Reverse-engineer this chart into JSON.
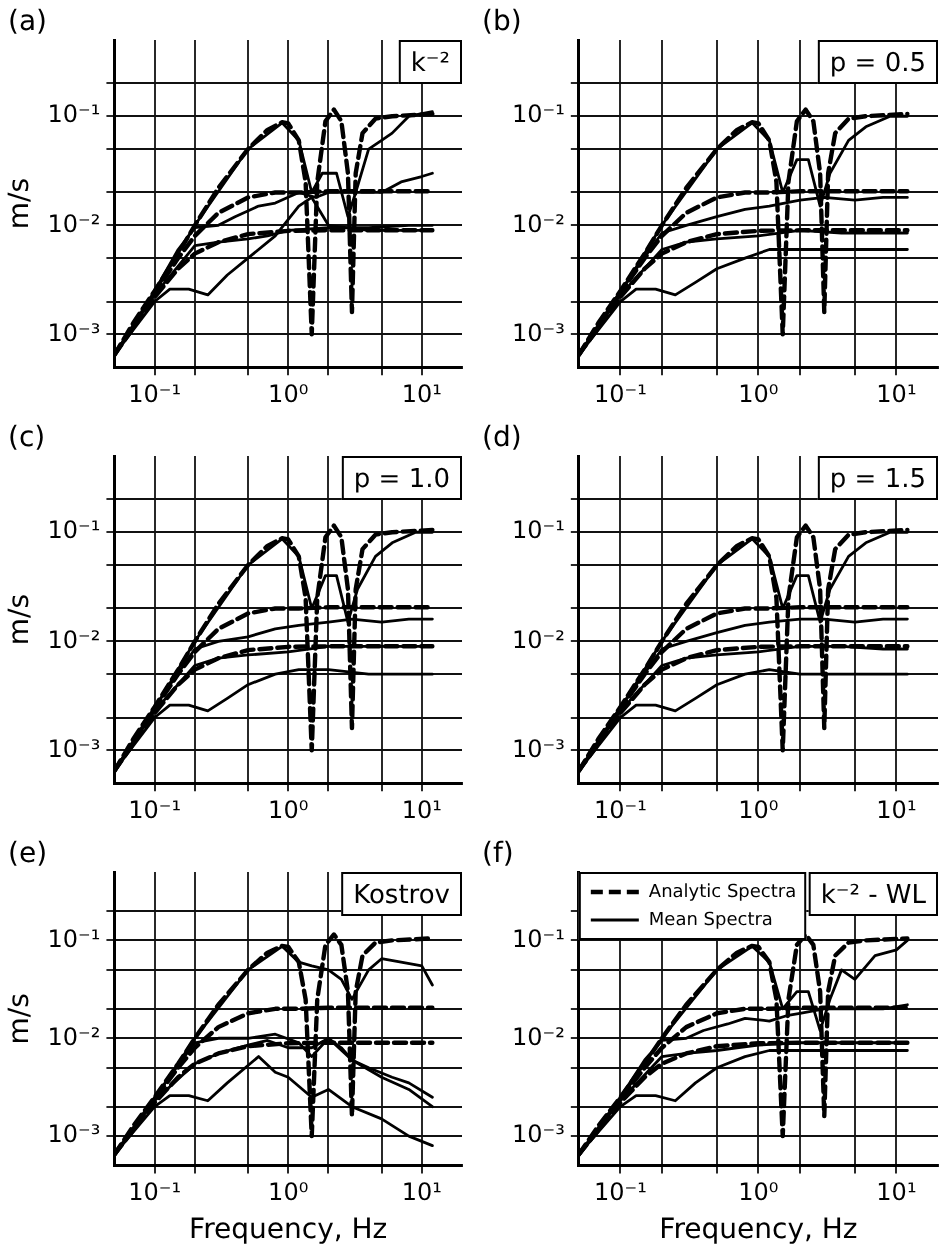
{
  "chart_data": [
    {
      "type": "line",
      "title": "(a)",
      "ylabel": "m/s",
      "annotations": [
        "k⁻²"
      ],
      "log": "xy",
      "grid": true,
      "xlim": [
        0.05,
        20
      ],
      "ylim": [
        0.0005,
        0.5
      ],
      "xticks": [
        {
          "value": 0.1,
          "label": "10⁻¹"
        },
        {
          "value": 0.2,
          "label": null
        },
        {
          "value": 0.5,
          "label": null
        },
        {
          "value": 1,
          "label": "10⁰"
        },
        {
          "value": 2,
          "label": null
        },
        {
          "value": 5,
          "label": null
        },
        {
          "value": 10,
          "label": "10¹"
        }
      ],
      "yticks": [
        {
          "value": 0.001,
          "label": "10⁻³"
        },
        {
          "value": 0.002,
          "label": null
        },
        {
          "value": 0.005,
          "label": null
        },
        {
          "value": 0.01,
          "label": "10⁻²"
        },
        {
          "value": 0.02,
          "label": null
        },
        {
          "value": 0.05,
          "label": null
        },
        {
          "value": 0.1,
          "label": "10⁻¹"
        },
        {
          "value": 0.2,
          "label": null
        }
      ],
      "series": [
        {
          "color": "#000000",
          "line_style": "solid",
          "x": [
            0.05,
            0.1,
            0.2,
            0.5,
            0.9,
            1.2,
            1.5,
            1.8,
            2.3,
            2.8,
            3.2,
            4,
            5,
            6,
            8,
            12
          ],
          "values": [
            0.00065,
            0.0024,
            0.01,
            0.05,
            0.087,
            0.06,
            0.02,
            0.03,
            0.03,
            0.012,
            0.02,
            0.05,
            0.06,
            0.07,
            0.1,
            0.11
          ]
        },
        {
          "color": "#000000",
          "line_style": "solid",
          "x": [
            0.05,
            0.1,
            0.15,
            0.2,
            0.3,
            0.4,
            0.6,
            0.8,
            1.2,
            1.6,
            2,
            3,
            5,
            7,
            10,
            12
          ],
          "values": [
            0.00065,
            0.0025,
            0.006,
            0.0095,
            0.01,
            0.012,
            0.015,
            0.016,
            0.02,
            0.018,
            0.02,
            0.02,
            0.02,
            0.025,
            0.028,
            0.03
          ]
        },
        {
          "color": "#000000",
          "line_style": "solid",
          "x": [
            0.05,
            0.1,
            0.13,
            0.18,
            0.25,
            0.35,
            0.5,
            0.8,
            1.2,
            1.5,
            2,
            4,
            8,
            12
          ],
          "values": [
            0.00065,
            0.002,
            0.0026,
            0.0026,
            0.0023,
            0.0035,
            0.005,
            0.008,
            0.015,
            0.018,
            0.01,
            0.009,
            0.009,
            0.009
          ]
        },
        {
          "color": "#000000",
          "line_style": "solid",
          "x": [
            0.05,
            0.1,
            0.2,
            0.3,
            0.5,
            0.7,
            1,
            2,
            4,
            8,
            12
          ],
          "values": [
            0.00065,
            0.0023,
            0.0065,
            0.007,
            0.0075,
            0.008,
            0.009,
            0.0095,
            0.0095,
            0.01,
            0.01
          ]
        },
        {
          "color": "#000000",
          "line_style": "dashed",
          "x": [
            0.05,
            0.07,
            0.1,
            0.15,
            0.2,
            0.3,
            0.5,
            0.7,
            0.9,
            1,
            1.2,
            1.35,
            1.5,
            1.65,
            1.9,
            2.2,
            2.5,
            2.8,
            3,
            3.2,
            3.6,
            4.5,
            6,
            12
          ],
          "values": [
            0.00065,
            0.0013,
            0.0025,
            0.0055,
            0.01,
            0.022,
            0.05,
            0.075,
            0.088,
            0.086,
            0.06,
            0.025,
            0.001,
            0.025,
            0.09,
            0.115,
            0.09,
            0.03,
            0.0016,
            0.03,
            0.07,
            0.095,
            0.1,
            0.105
          ]
        },
        {
          "color": "#000000",
          "line_style": "dashed",
          "x": [
            0.05,
            0.1,
            0.15,
            0.2,
            0.3,
            0.5,
            0.8,
            1.2,
            2,
            5,
            12
          ],
          "values": [
            0.00065,
            0.0024,
            0.005,
            0.008,
            0.013,
            0.018,
            0.02,
            0.02,
            0.0205,
            0.0205,
            0.0205
          ]
        },
        {
          "color": "#000000",
          "line_style": "dashed",
          "x": [
            0.05,
            0.1,
            0.15,
            0.2,
            0.3,
            0.5,
            1,
            2,
            12
          ],
          "values": [
            0.00065,
            0.0022,
            0.004,
            0.0055,
            0.007,
            0.0083,
            0.0089,
            0.009,
            0.009
          ]
        }
      ]
    },
    {
      "type": "line",
      "title": "(b)",
      "annotations": [
        "p = 0.5"
      ],
      "log": "xy",
      "grid": true,
      "xlim": [
        0.05,
        20
      ],
      "ylim": [
        0.0005,
        0.5
      ],
      "xticks": [
        {
          "value": 0.1,
          "label": "10⁻¹"
        },
        {
          "value": 0.2,
          "label": null
        },
        {
          "value": 0.5,
          "label": null
        },
        {
          "value": 1,
          "label": "10⁰"
        },
        {
          "value": 2,
          "label": null
        },
        {
          "value": 5,
          "label": null
        },
        {
          "value": 10,
          "label": "10¹"
        }
      ],
      "yticks": [
        {
          "value": 0.001,
          "label": "10⁻³"
        },
        {
          "value": 0.002,
          "label": null
        },
        {
          "value": 0.005,
          "label": null
        },
        {
          "value": 0.01,
          "label": "10⁻²"
        },
        {
          "value": 0.02,
          "label": null
        },
        {
          "value": 0.05,
          "label": null
        },
        {
          "value": 0.1,
          "label": "10⁻¹"
        },
        {
          "value": 0.2,
          "label": null
        }
      ],
      "series": [
        {
          "color": "#000000",
          "line_style": "solid",
          "x": [
            0.05,
            0.1,
            0.2,
            0.5,
            0.9,
            1.2,
            1.5,
            1.9,
            2.3,
            2.8,
            3.3,
            4.5,
            6,
            9,
            12
          ],
          "values": [
            0.00065,
            0.0024,
            0.01,
            0.05,
            0.087,
            0.06,
            0.02,
            0.04,
            0.04,
            0.015,
            0.03,
            0.06,
            0.08,
            0.1,
            0.1
          ]
        },
        {
          "color": "#000000",
          "line_style": "solid",
          "x": [
            0.05,
            0.1,
            0.2,
            0.3,
            0.5,
            0.8,
            1.2,
            2,
            3,
            5,
            8,
            12
          ],
          "values": [
            0.00065,
            0.0025,
            0.0085,
            0.01,
            0.012,
            0.014,
            0.015,
            0.017,
            0.018,
            0.017,
            0.018,
            0.018
          ]
        },
        {
          "color": "#000000",
          "line_style": "solid",
          "x": [
            0.05,
            0.1,
            0.13,
            0.18,
            0.25,
            0.35,
            0.5,
            0.8,
            1.2,
            2,
            4,
            8,
            12
          ],
          "values": [
            0.00065,
            0.002,
            0.0026,
            0.0026,
            0.0023,
            0.003,
            0.004,
            0.005,
            0.006,
            0.006,
            0.006,
            0.006,
            0.006
          ]
        },
        {
          "color": "#000000",
          "line_style": "solid",
          "x": [
            0.05,
            0.1,
            0.2,
            0.3,
            0.5,
            1,
            2,
            4,
            8,
            12
          ],
          "values": [
            0.00065,
            0.0023,
            0.006,
            0.007,
            0.0075,
            0.008,
            0.009,
            0.0085,
            0.0085,
            0.0085
          ]
        },
        {
          "color": "#000000",
          "line_style": "dashed",
          "x": [
            0.05,
            0.07,
            0.1,
            0.15,
            0.2,
            0.3,
            0.5,
            0.7,
            0.9,
            1,
            1.2,
            1.35,
            1.5,
            1.65,
            1.9,
            2.2,
            2.5,
            2.8,
            3,
            3.2,
            3.6,
            4.5,
            6,
            12
          ],
          "values": [
            0.00065,
            0.0013,
            0.0025,
            0.0055,
            0.01,
            0.022,
            0.05,
            0.075,
            0.088,
            0.086,
            0.06,
            0.025,
            0.001,
            0.025,
            0.09,
            0.115,
            0.09,
            0.03,
            0.0016,
            0.03,
            0.07,
            0.095,
            0.1,
            0.105
          ]
        },
        {
          "color": "#000000",
          "line_style": "dashed",
          "x": [
            0.05,
            0.1,
            0.15,
            0.2,
            0.3,
            0.5,
            0.8,
            1.2,
            2,
            5,
            12
          ],
          "values": [
            0.00065,
            0.0024,
            0.005,
            0.008,
            0.013,
            0.018,
            0.02,
            0.02,
            0.0205,
            0.0205,
            0.0205
          ]
        },
        {
          "color": "#000000",
          "line_style": "dashed",
          "x": [
            0.05,
            0.1,
            0.15,
            0.2,
            0.3,
            0.5,
            1,
            2,
            12
          ],
          "values": [
            0.00065,
            0.0022,
            0.004,
            0.0055,
            0.007,
            0.0083,
            0.0089,
            0.009,
            0.009
          ]
        }
      ]
    },
    {
      "type": "line",
      "title": "(c)",
      "ylabel": "m/s",
      "annotations": [
        "p = 1.0"
      ],
      "log": "xy",
      "grid": true,
      "xlim": [
        0.05,
        20
      ],
      "ylim": [
        0.0005,
        0.5
      ],
      "xticks": [
        {
          "value": 0.1,
          "label": "10⁻¹"
        },
        {
          "value": 0.2,
          "label": null
        },
        {
          "value": 0.5,
          "label": null
        },
        {
          "value": 1,
          "label": "10⁰"
        },
        {
          "value": 2,
          "label": null
        },
        {
          "value": 5,
          "label": null
        },
        {
          "value": 10,
          "label": "10¹"
        }
      ],
      "yticks": [
        {
          "value": 0.001,
          "label": "10⁻³"
        },
        {
          "value": 0.002,
          "label": null
        },
        {
          "value": 0.005,
          "label": null
        },
        {
          "value": 0.01,
          "label": "10⁻²"
        },
        {
          "value": 0.02,
          "label": null
        },
        {
          "value": 0.05,
          "label": null
        },
        {
          "value": 0.1,
          "label": "10⁻¹"
        },
        {
          "value": 0.2,
          "label": null
        }
      ],
      "series": [
        {
          "color": "#000000",
          "line_style": "solid",
          "x": [
            0.05,
            0.1,
            0.2,
            0.5,
            0.9,
            1.2,
            1.5,
            1.9,
            2.3,
            2.8,
            3.3,
            4.5,
            6,
            9,
            12
          ],
          "values": [
            0.00065,
            0.0024,
            0.01,
            0.05,
            0.087,
            0.06,
            0.02,
            0.04,
            0.04,
            0.015,
            0.03,
            0.06,
            0.08,
            0.1,
            0.1
          ]
        },
        {
          "color": "#000000",
          "line_style": "solid",
          "x": [
            0.05,
            0.1,
            0.2,
            0.3,
            0.5,
            0.8,
            1.2,
            2,
            3,
            5,
            8,
            12
          ],
          "values": [
            0.00065,
            0.0025,
            0.0085,
            0.01,
            0.011,
            0.013,
            0.014,
            0.015,
            0.016,
            0.015,
            0.016,
            0.016
          ]
        },
        {
          "color": "#000000",
          "line_style": "solid",
          "x": [
            0.05,
            0.1,
            0.13,
            0.18,
            0.25,
            0.35,
            0.5,
            0.8,
            1.2,
            2,
            4,
            8,
            12
          ],
          "values": [
            0.00065,
            0.002,
            0.0026,
            0.0026,
            0.0023,
            0.003,
            0.004,
            0.005,
            0.0055,
            0.0055,
            0.005,
            0.005,
            0.005
          ]
        },
        {
          "color": "#000000",
          "line_style": "solid",
          "x": [
            0.05,
            0.1,
            0.2,
            0.3,
            0.5,
            1,
            2,
            4,
            8,
            12
          ],
          "values": [
            0.00065,
            0.0023,
            0.006,
            0.007,
            0.0075,
            0.008,
            0.009,
            0.009,
            0.009,
            0.009
          ]
        },
        {
          "color": "#000000",
          "line_style": "dashed",
          "x": [
            0.05,
            0.07,
            0.1,
            0.15,
            0.2,
            0.3,
            0.5,
            0.7,
            0.9,
            1,
            1.2,
            1.35,
            1.5,
            1.65,
            1.9,
            2.2,
            2.5,
            2.8,
            3,
            3.2,
            3.6,
            4.5,
            6,
            12
          ],
          "values": [
            0.00065,
            0.0013,
            0.0025,
            0.0055,
            0.01,
            0.022,
            0.05,
            0.075,
            0.088,
            0.086,
            0.06,
            0.025,
            0.001,
            0.025,
            0.09,
            0.115,
            0.09,
            0.03,
            0.0016,
            0.03,
            0.07,
            0.095,
            0.1,
            0.105
          ]
        },
        {
          "color": "#000000",
          "line_style": "dashed",
          "x": [
            0.05,
            0.1,
            0.15,
            0.2,
            0.3,
            0.5,
            0.8,
            1.2,
            2,
            5,
            12
          ],
          "values": [
            0.00065,
            0.0024,
            0.005,
            0.008,
            0.013,
            0.018,
            0.02,
            0.02,
            0.0205,
            0.0205,
            0.0205
          ]
        },
        {
          "color": "#000000",
          "line_style": "dashed",
          "x": [
            0.05,
            0.1,
            0.15,
            0.2,
            0.3,
            0.5,
            1,
            2,
            12
          ],
          "values": [
            0.00065,
            0.0022,
            0.004,
            0.0055,
            0.007,
            0.0083,
            0.0089,
            0.009,
            0.009
          ]
        }
      ]
    },
    {
      "type": "line",
      "title": "(d)",
      "annotations": [
        "p = 1.5"
      ],
      "log": "xy",
      "grid": true,
      "xlim": [
        0.05,
        20
      ],
      "ylim": [
        0.0005,
        0.5
      ],
      "xticks": [
        {
          "value": 0.1,
          "label": "10⁻¹"
        },
        {
          "value": 0.2,
          "label": null
        },
        {
          "value": 0.5,
          "label": null
        },
        {
          "value": 1,
          "label": "10⁰"
        },
        {
          "value": 2,
          "label": null
        },
        {
          "value": 5,
          "label": null
        },
        {
          "value": 10,
          "label": "10¹"
        }
      ],
      "yticks": [
        {
          "value": 0.001,
          "label": "10⁻³"
        },
        {
          "value": 0.002,
          "label": null
        },
        {
          "value": 0.005,
          "label": null
        },
        {
          "value": 0.01,
          "label": "10⁻²"
        },
        {
          "value": 0.02,
          "label": null
        },
        {
          "value": 0.05,
          "label": null
        },
        {
          "value": 0.1,
          "label": "10⁻¹"
        },
        {
          "value": 0.2,
          "label": null
        }
      ],
      "series": [
        {
          "color": "#000000",
          "line_style": "solid",
          "x": [
            0.05,
            0.1,
            0.2,
            0.5,
            0.9,
            1.2,
            1.5,
            1.9,
            2.3,
            2.8,
            3.3,
            4.5,
            6,
            9,
            12
          ],
          "values": [
            0.00065,
            0.0024,
            0.01,
            0.05,
            0.087,
            0.06,
            0.02,
            0.04,
            0.04,
            0.015,
            0.03,
            0.06,
            0.08,
            0.1,
            0.1
          ]
        },
        {
          "color": "#000000",
          "line_style": "solid",
          "x": [
            0.05,
            0.1,
            0.2,
            0.3,
            0.5,
            0.8,
            1.2,
            2,
            3,
            5,
            8,
            12
          ],
          "values": [
            0.00065,
            0.0025,
            0.0085,
            0.01,
            0.012,
            0.014,
            0.015,
            0.016,
            0.016,
            0.015,
            0.016,
            0.016
          ]
        },
        {
          "color": "#000000",
          "line_style": "solid",
          "x": [
            0.05,
            0.1,
            0.13,
            0.18,
            0.25,
            0.35,
            0.5,
            0.8,
            1.2,
            2,
            4,
            8,
            12
          ],
          "values": [
            0.00065,
            0.002,
            0.0026,
            0.0026,
            0.0023,
            0.003,
            0.004,
            0.005,
            0.0055,
            0.005,
            0.005,
            0.005,
            0.005
          ]
        },
        {
          "color": "#000000",
          "line_style": "solid",
          "x": [
            0.05,
            0.1,
            0.2,
            0.3,
            0.5,
            1,
            2,
            4,
            8,
            12
          ],
          "values": [
            0.00065,
            0.0023,
            0.006,
            0.007,
            0.0075,
            0.008,
            0.009,
            0.009,
            0.0085,
            0.0085
          ]
        },
        {
          "color": "#000000",
          "line_style": "dashed",
          "x": [
            0.05,
            0.07,
            0.1,
            0.15,
            0.2,
            0.3,
            0.5,
            0.7,
            0.9,
            1,
            1.2,
            1.35,
            1.5,
            1.65,
            1.9,
            2.2,
            2.5,
            2.8,
            3,
            3.2,
            3.6,
            4.5,
            6,
            12
          ],
          "values": [
            0.00065,
            0.0013,
            0.0025,
            0.0055,
            0.01,
            0.022,
            0.05,
            0.075,
            0.088,
            0.086,
            0.06,
            0.025,
            0.001,
            0.025,
            0.09,
            0.115,
            0.09,
            0.03,
            0.0016,
            0.03,
            0.07,
            0.095,
            0.1,
            0.105
          ]
        },
        {
          "color": "#000000",
          "line_style": "dashed",
          "x": [
            0.05,
            0.1,
            0.15,
            0.2,
            0.3,
            0.5,
            0.8,
            1.2,
            2,
            5,
            12
          ],
          "values": [
            0.00065,
            0.0024,
            0.005,
            0.008,
            0.013,
            0.018,
            0.02,
            0.02,
            0.0205,
            0.0205,
            0.0205
          ]
        },
        {
          "color": "#000000",
          "line_style": "dashed",
          "x": [
            0.05,
            0.1,
            0.15,
            0.2,
            0.3,
            0.5,
            1,
            2,
            12
          ],
          "values": [
            0.00065,
            0.0022,
            0.004,
            0.0055,
            0.007,
            0.0083,
            0.0089,
            0.009,
            0.009
          ]
        }
      ]
    },
    {
      "type": "line",
      "title": "(e)",
      "ylabel": "m/s",
      "xlabel": "Frequency, Hz",
      "annotations": [
        "Kostrov"
      ],
      "log": "xy",
      "grid": true,
      "xlim": [
        0.05,
        20
      ],
      "ylim": [
        0.0005,
        0.5
      ],
      "xticks": [
        {
          "value": 0.1,
          "label": "10⁻¹"
        },
        {
          "value": 0.2,
          "label": null
        },
        {
          "value": 0.5,
          "label": null
        },
        {
          "value": 1,
          "label": "10⁰"
        },
        {
          "value": 2,
          "label": null
        },
        {
          "value": 5,
          "label": null
        },
        {
          "value": 10,
          "label": "10¹"
        }
      ],
      "yticks": [
        {
          "value": 0.001,
          "label": "10⁻³"
        },
        {
          "value": 0.002,
          "label": null
        },
        {
          "value": 0.005,
          "label": null
        },
        {
          "value": 0.01,
          "label": "10⁻²"
        },
        {
          "value": 0.02,
          "label": null
        },
        {
          "value": 0.05,
          "label": null
        },
        {
          "value": 0.1,
          "label": "10⁻¹"
        },
        {
          "value": 0.2,
          "label": null
        }
      ],
      "series": [
        {
          "color": "#000000",
          "line_style": "solid",
          "x": [
            0.05,
            0.1,
            0.2,
            0.5,
            0.9,
            1.2,
            1.5,
            2,
            2.5,
            3,
            4,
            5,
            7,
            10,
            12
          ],
          "values": [
            0.00065,
            0.0024,
            0.01,
            0.05,
            0.087,
            0.06,
            0.055,
            0.05,
            0.04,
            0.025,
            0.05,
            0.065,
            0.06,
            0.055,
            0.035
          ]
        },
        {
          "color": "#000000",
          "line_style": "solid",
          "x": [
            0.05,
            0.1,
            0.2,
            0.3,
            0.5,
            0.8,
            1.2,
            1.5,
            2,
            2.5,
            3,
            4,
            6,
            8,
            12
          ],
          "values": [
            0.00065,
            0.0025,
            0.009,
            0.01,
            0.01,
            0.011,
            0.009,
            0.0065,
            0.01,
            0.008,
            0.006,
            0.005,
            0.004,
            0.0035,
            0.0025
          ]
        },
        {
          "color": "#000000",
          "line_style": "solid",
          "x": [
            0.05,
            0.1,
            0.13,
            0.18,
            0.25,
            0.35,
            0.6,
            0.8,
            1,
            1.5,
            2,
            3,
            5,
            8,
            12
          ],
          "values": [
            0.00065,
            0.002,
            0.0026,
            0.0026,
            0.0023,
            0.0035,
            0.0065,
            0.0045,
            0.004,
            0.0025,
            0.003,
            0.002,
            0.0015,
            0.001,
            0.0008
          ]
        },
        {
          "color": "#000000",
          "line_style": "solid",
          "x": [
            0.05,
            0.1,
            0.2,
            0.3,
            0.5,
            0.7,
            1,
            1.5,
            2,
            3,
            5,
            8,
            12
          ],
          "values": [
            0.00065,
            0.0023,
            0.0055,
            0.007,
            0.0085,
            0.0095,
            0.008,
            0.008,
            0.01,
            0.006,
            0.004,
            0.003,
            0.002
          ]
        },
        {
          "color": "#000000",
          "line_style": "dashed",
          "x": [
            0.05,
            0.07,
            0.1,
            0.15,
            0.2,
            0.3,
            0.5,
            0.7,
            0.9,
            1,
            1.2,
            1.35,
            1.5,
            1.65,
            1.9,
            2.2,
            2.5,
            2.8,
            3,
            3.2,
            3.6,
            4.5,
            6,
            12
          ],
          "values": [
            0.00065,
            0.0013,
            0.0025,
            0.0055,
            0.01,
            0.022,
            0.05,
            0.075,
            0.088,
            0.086,
            0.06,
            0.025,
            0.001,
            0.025,
            0.09,
            0.115,
            0.09,
            0.03,
            0.0016,
            0.03,
            0.07,
            0.095,
            0.1,
            0.105
          ]
        },
        {
          "color": "#000000",
          "line_style": "dashed",
          "x": [
            0.05,
            0.1,
            0.15,
            0.2,
            0.3,
            0.5,
            0.8,
            1.2,
            2,
            5,
            12
          ],
          "values": [
            0.00065,
            0.0024,
            0.005,
            0.008,
            0.013,
            0.018,
            0.02,
            0.02,
            0.0205,
            0.0205,
            0.0205
          ]
        },
        {
          "color": "#000000",
          "line_style": "dashed",
          "x": [
            0.05,
            0.1,
            0.15,
            0.2,
            0.3,
            0.5,
            1,
            2,
            12
          ],
          "values": [
            0.00065,
            0.0022,
            0.004,
            0.0055,
            0.007,
            0.0083,
            0.0089,
            0.009,
            0.009
          ]
        }
      ]
    },
    {
      "type": "line",
      "title": "(f)",
      "xlabel": "Frequency, Hz",
      "annotations": [
        "k⁻² - WL"
      ],
      "legend": "top left",
      "log": "xy",
      "grid": true,
      "xlim": [
        0.05,
        20
      ],
      "ylim": [
        0.0005,
        0.5
      ],
      "xticks": [
        {
          "value": 0.1,
          "label": "10⁻¹"
        },
        {
          "value": 0.2,
          "label": null
        },
        {
          "value": 0.5,
          "label": null
        },
        {
          "value": 1,
          "label": "10⁰"
        },
        {
          "value": 2,
          "label": null
        },
        {
          "value": 5,
          "label": null
        },
        {
          "value": 10,
          "label": "10¹"
        }
      ],
      "yticks": [
        {
          "value": 0.001,
          "label": "10⁻³"
        },
        {
          "value": 0.002,
          "label": null
        },
        {
          "value": 0.005,
          "label": null
        },
        {
          "value": 0.01,
          "label": "10⁻²"
        },
        {
          "value": 0.02,
          "label": null
        },
        {
          "value": 0.05,
          "label": null
        },
        {
          "value": 0.1,
          "label": "10⁻¹"
        },
        {
          "value": 0.2,
          "label": null
        }
      ],
      "series": [
        {
          "name": "Mean Spectra",
          "color": "#000000",
          "line_style": "solid",
          "x": [
            0.05,
            0.1,
            0.2,
            0.5,
            0.9,
            1.2,
            1.5,
            1.9,
            2.3,
            2.8,
            3.3,
            4,
            5,
            7,
            10,
            12
          ],
          "values": [
            0.00065,
            0.0024,
            0.01,
            0.05,
            0.087,
            0.06,
            0.02,
            0.03,
            0.03,
            0.012,
            0.025,
            0.05,
            0.04,
            0.07,
            0.08,
            0.1
          ]
        },
        {
          "color": "#000000",
          "line_style": "solid",
          "x": [
            0.05,
            0.1,
            0.15,
            0.2,
            0.3,
            0.4,
            0.6,
            0.8,
            1.2,
            1.6,
            2,
            3,
            5,
            8,
            12
          ],
          "values": [
            0.00065,
            0.0025,
            0.006,
            0.0095,
            0.01,
            0.012,
            0.014,
            0.016,
            0.015,
            0.017,
            0.018,
            0.02,
            0.02,
            0.02,
            0.022
          ]
        },
        {
          "color": "#000000",
          "line_style": "solid",
          "x": [
            0.05,
            0.1,
            0.13,
            0.18,
            0.25,
            0.35,
            0.5,
            0.8,
            1.2,
            2,
            4,
            8,
            12
          ],
          "values": [
            0.00065,
            0.002,
            0.0026,
            0.0026,
            0.0023,
            0.0035,
            0.005,
            0.0065,
            0.0075,
            0.0075,
            0.0075,
            0.0075,
            0.0075
          ]
        },
        {
          "color": "#000000",
          "line_style": "solid",
          "x": [
            0.05,
            0.1,
            0.2,
            0.3,
            0.5,
            0.7,
            1,
            2,
            4,
            8,
            12
          ],
          "values": [
            0.00065,
            0.0023,
            0.0065,
            0.007,
            0.0075,
            0.008,
            0.0085,
            0.009,
            0.009,
            0.009,
            0.009
          ]
        },
        {
          "name": "Analytic Spectra",
          "color": "#000000",
          "line_style": "dashed",
          "x": [
            0.05,
            0.07,
            0.1,
            0.15,
            0.2,
            0.3,
            0.5,
            0.7,
            0.9,
            1,
            1.2,
            1.35,
            1.5,
            1.65,
            1.9,
            2.2,
            2.5,
            2.8,
            3,
            3.2,
            3.6,
            4.5,
            6,
            12
          ],
          "values": [
            0.00065,
            0.0013,
            0.0025,
            0.0055,
            0.01,
            0.022,
            0.05,
            0.075,
            0.088,
            0.086,
            0.06,
            0.025,
            0.001,
            0.025,
            0.09,
            0.115,
            0.09,
            0.03,
            0.0016,
            0.03,
            0.07,
            0.095,
            0.1,
            0.105
          ]
        },
        {
          "color": "#000000",
          "line_style": "dashed",
          "x": [
            0.05,
            0.1,
            0.15,
            0.2,
            0.3,
            0.5,
            0.8,
            1.2,
            2,
            5,
            12
          ],
          "values": [
            0.00065,
            0.0024,
            0.005,
            0.008,
            0.013,
            0.018,
            0.02,
            0.02,
            0.0205,
            0.0205,
            0.0205
          ]
        },
        {
          "color": "#000000",
          "line_style": "dashed",
          "x": [
            0.05,
            0.1,
            0.15,
            0.2,
            0.3,
            0.5,
            1,
            2,
            12
          ],
          "values": [
            0.00065,
            0.0022,
            0.004,
            0.0055,
            0.007,
            0.0083,
            0.0089,
            0.009,
            0.009
          ]
        }
      ]
    }
  ]
}
